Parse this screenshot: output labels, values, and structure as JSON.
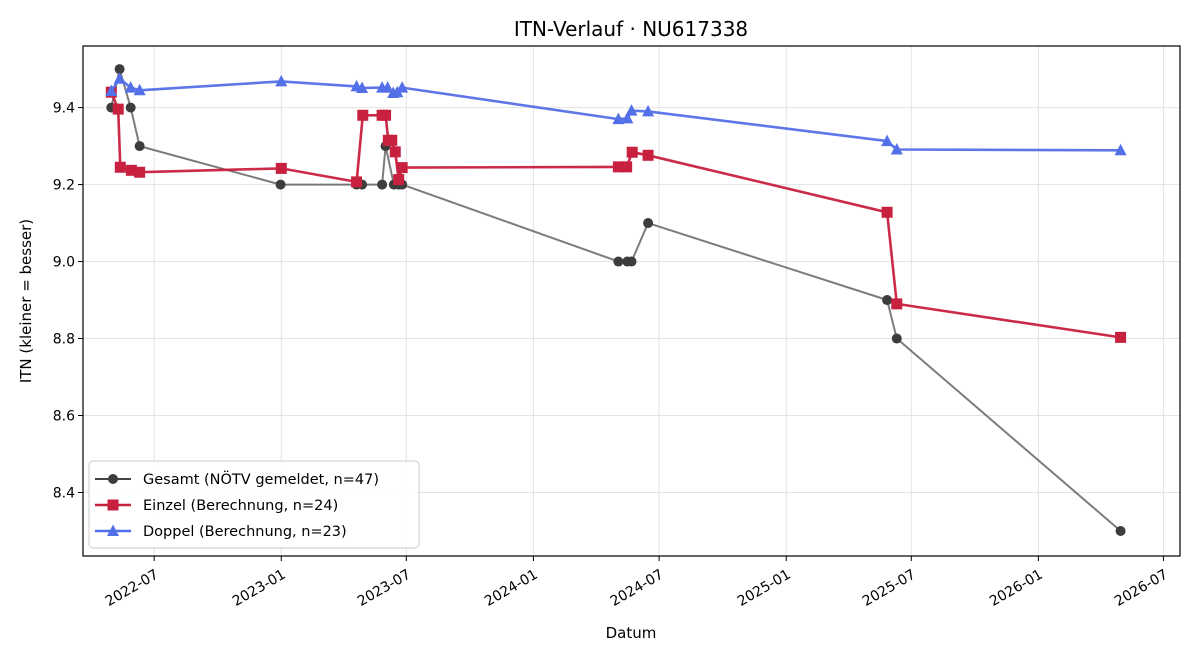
{
  "chart_data": {
    "type": "line",
    "title": "ITN-Verlauf · NU617338",
    "xlabel": "Datum",
    "ylabel": "ITN  (kleiner = besser)",
    "xlim": [
      "2022-03-20",
      "2026-07-25"
    ],
    "ylim": [
      8.235,
      9.56
    ],
    "x_ticks": [
      "2022-07",
      "2023-01",
      "2023-07",
      "2024-01",
      "2024-07",
      "2025-01",
      "2025-07",
      "2026-01",
      "2026-07"
    ],
    "y_ticks": [
      8.4,
      8.6,
      8.8,
      9.0,
      9.2,
      9.4
    ],
    "grid": true,
    "legend_position": "lower-left",
    "series": [
      {
        "name": "Gesamt (NÖTV gemeldet, n=47)",
        "color": "#444444",
        "marker": "circle",
        "points": [
          [
            "2022-04-30",
            9.4
          ],
          [
            "2022-05-12",
            9.5
          ],
          [
            "2022-05-28",
            9.4
          ],
          [
            "2022-06-10",
            9.3
          ],
          [
            "2022-12-31",
            9.2
          ],
          [
            "2023-04-20",
            9.2
          ],
          [
            "2023-04-28",
            9.2
          ],
          [
            "2023-05-27",
            9.2
          ],
          [
            "2023-06-01",
            9.3
          ],
          [
            "2023-06-13",
            9.2
          ],
          [
            "2023-06-20",
            9.2
          ],
          [
            "2023-06-25",
            9.2
          ],
          [
            "2024-05-03",
            9.0
          ],
          [
            "2024-05-16",
            9.0
          ],
          [
            "2024-05-22",
            9.0
          ],
          [
            "2024-06-15",
            9.1
          ],
          [
            "2025-05-27",
            8.9
          ],
          [
            "2025-06-10",
            8.8
          ],
          [
            "2026-04-30",
            8.3
          ]
        ]
      },
      {
        "name": "Einzel (Berechnung, n=24)",
        "color": "#c8203f",
        "marker": "square",
        "points": [
          [
            "2022-04-30",
            9.44
          ],
          [
            "2022-05-10",
            9.396
          ],
          [
            "2022-05-13",
            9.245
          ],
          [
            "2022-05-29",
            9.237
          ],
          [
            "2022-06-10",
            9.232
          ],
          [
            "2023-01-01",
            9.242
          ],
          [
            "2023-04-20",
            9.207
          ],
          [
            "2023-04-29",
            9.38
          ],
          [
            "2023-05-27",
            9.38
          ],
          [
            "2023-06-01",
            9.38
          ],
          [
            "2023-06-05",
            9.315
          ],
          [
            "2023-06-10",
            9.315
          ],
          [
            "2023-06-15",
            9.285
          ],
          [
            "2023-06-20",
            9.213
          ],
          [
            "2023-06-25",
            9.244
          ],
          [
            "2024-05-03",
            9.246
          ],
          [
            "2024-05-15",
            9.246
          ],
          [
            "2024-05-23",
            9.284
          ],
          [
            "2024-06-15",
            9.276
          ],
          [
            "2025-05-27",
            9.128
          ],
          [
            "2025-06-10",
            8.89
          ],
          [
            "2026-04-30",
            8.803
          ]
        ]
      },
      {
        "name": "Doppel (Berechnung, n=23)",
        "color": "#5470e8",
        "marker": "triangle",
        "points": [
          [
            "2022-04-30",
            9.443
          ],
          [
            "2022-05-12",
            9.475
          ],
          [
            "2022-05-28",
            9.452
          ],
          [
            "2022-06-10",
            9.445
          ],
          [
            "2023-01-01",
            9.468
          ],
          [
            "2023-04-20",
            9.455
          ],
          [
            "2023-04-28",
            9.451
          ],
          [
            "2023-05-27",
            9.452
          ],
          [
            "2023-06-04",
            9.452
          ],
          [
            "2023-06-12",
            9.438
          ],
          [
            "2023-06-18",
            9.44
          ],
          [
            "2023-06-25",
            9.452
          ],
          [
            "2024-05-03",
            9.37
          ],
          [
            "2024-05-16",
            9.372
          ],
          [
            "2024-05-22",
            9.392
          ],
          [
            "2024-06-15",
            9.39
          ],
          [
            "2025-05-27",
            9.313
          ],
          [
            "2025-06-10",
            9.291
          ],
          [
            "2026-04-30",
            9.289
          ]
        ]
      }
    ]
  }
}
